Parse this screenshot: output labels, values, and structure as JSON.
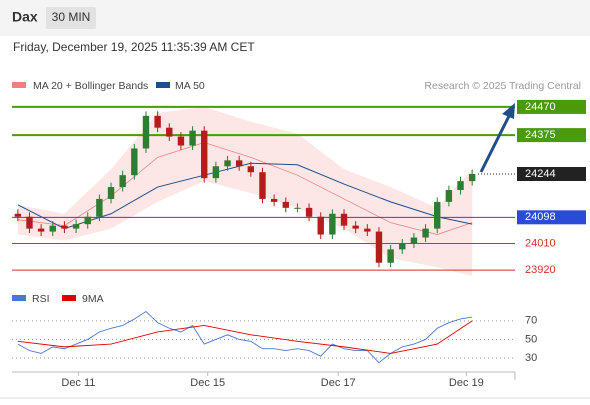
{
  "header": {
    "symbol": "Dax",
    "interval": "30 MIN",
    "timestamp": "Friday, December 19, 2025 11:35:39 AM CET"
  },
  "chart_data": {
    "type": "candlestick",
    "credit": "Research © 2025 Trading Central",
    "up_color": "#2e7d32",
    "down_color": "#b71c1c",
    "open": [
      24110,
      24100,
      24060,
      24050,
      24070,
      24060,
      24075,
      24100,
      24160,
      24200,
      24240,
      24330,
      24440,
      24400,
      24370,
      24340,
      24390,
      24230,
      24270,
      24290,
      24270,
      24250,
      24160,
      24150,
      24130,
      24130,
      24100,
      24040,
      24110,
      24070,
      24060,
      24050,
      23945,
      23990,
      24010,
      24030,
      24060,
      24150,
      24190,
      24220
    ],
    "high": [
      24125,
      24115,
      24075,
      24085,
      24085,
      24090,
      24115,
      24175,
      24215,
      24255,
      24345,
      24455,
      24455,
      24415,
      24385,
      24405,
      24405,
      24285,
      24305,
      24305,
      24285,
      24265,
      24175,
      24165,
      24145,
      24145,
      24115,
      24125,
      24125,
      24085,
      24075,
      24065,
      24005,
      24025,
      24045,
      24075,
      24165,
      24205,
      24235,
      24259
    ],
    "low": [
      24085,
      24045,
      24035,
      24035,
      24045,
      24045,
      24060,
      24085,
      24145,
      24185,
      24225,
      24315,
      24385,
      24355,
      24325,
      24325,
      24215,
      24215,
      24255,
      24255,
      24235,
      24145,
      24135,
      24115,
      24115,
      24085,
      24025,
      24025,
      24055,
      24045,
      24035,
      23930,
      23930,
      23975,
      23995,
      24015,
      24045,
      24135,
      24175,
      24205
    ],
    "close": [
      24100,
      24060,
      24050,
      24070,
      24060,
      24075,
      24100,
      24160,
      24200,
      24240,
      24330,
      24440,
      24400,
      24370,
      24340,
      24390,
      24230,
      24270,
      24290,
      24270,
      24250,
      24160,
      24150,
      24130,
      24130,
      24100,
      24040,
      24110,
      24070,
      24060,
      24050,
      23945,
      23990,
      24010,
      24030,
      24060,
      24150,
      24190,
      24220,
      24244
    ],
    "xlim": [
      0,
      40
    ],
    "xticks": [
      {
        "value": 5.7,
        "label": "Dec 11"
      },
      {
        "value": 16.8,
        "label": "Dec 15"
      },
      {
        "value": 28,
        "label": "Dec 17"
      },
      {
        "value": 39,
        "label": "Dec 19"
      }
    ],
    "ylim": [
      23870,
      24527
    ],
    "series_x": [
      0.5,
      4.5,
      8.5,
      12.5,
      16.5,
      20.5,
      24.5,
      28.5,
      32.5,
      36.5,
      39.5
    ],
    "series": [
      {
        "name": "MA 20 + Bollinger Bands",
        "color": "#f08080",
        "band_color": "#fde0e0",
        "values": [
          24090,
          24070,
          24170,
          24300,
          24350,
          24300,
          24240,
          24160,
          24080,
          24040,
          24080
        ],
        "upper": [
          24140,
          24110,
          24260,
          24450,
          24470,
          24420,
          24380,
          24260,
          24200,
          24130,
          24260
        ],
        "lower": [
          24040,
          24020,
          24060,
          24150,
          24220,
          24180,
          24130,
          24060,
          23960,
          23930,
          23900
        ]
      },
      {
        "name": "MA 50",
        "color": "#1f4e8c",
        "values": [
          24140,
          24060,
          24110,
          24200,
          24240,
          24280,
          24275,
          24210,
          24150,
          24100,
          24075
        ]
      }
    ],
    "levels": [
      {
        "value": 24470,
        "color": "#4a9a0a",
        "line": "solid",
        "boxed": true
      },
      {
        "value": 24375,
        "color": "#4a9a0a",
        "line": "solid",
        "boxed": true
      },
      {
        "value": 24244,
        "color": "#222222",
        "line": "dotted",
        "boxed": true
      },
      {
        "value": 24098,
        "color": "#2a4bd7",
        "line": "solid",
        "boxed": true
      },
      {
        "value": 24010,
        "color": "#d32f2f",
        "line": "solid",
        "boxed": false
      },
      {
        "value": 23920,
        "color": "#d32f2f",
        "line": "solid",
        "boxed": false
      }
    ],
    "rsi": {
      "name": "RSI",
      "color": "#4a78d0",
      "values": [
        45,
        38,
        35,
        42,
        40,
        45,
        50,
        58,
        62,
        65,
        72,
        80,
        68,
        62,
        58,
        65,
        45,
        50,
        55,
        50,
        48,
        40,
        40,
        38,
        40,
        38,
        32,
        45,
        40,
        38,
        38,
        25,
        35,
        42,
        45,
        50,
        62,
        68,
        72,
        74
      ],
      "ma": {
        "name": "9MA",
        "color": "#e00000",
        "values": [
          48,
          42,
          45,
          58,
          65,
          55,
          48,
          42,
          35,
          45,
          70
        ]
      },
      "ylim": [
        15,
        87
      ],
      "yticks": [
        70,
        50,
        30
      ]
    }
  }
}
